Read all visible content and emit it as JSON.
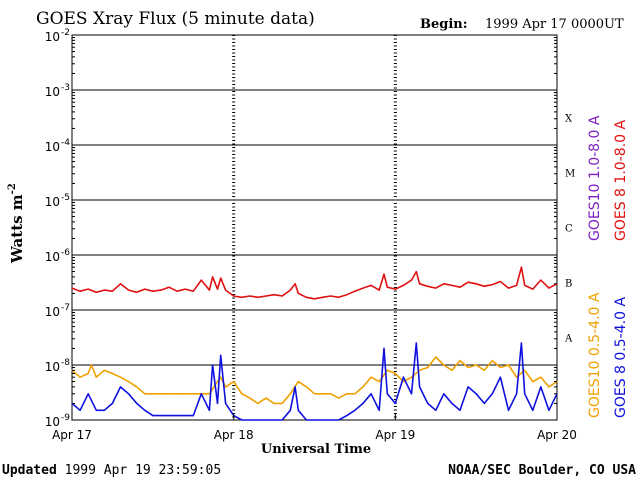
{
  "chart_data": {
    "type": "line",
    "title": "GOES Xray Flux (5 minute data)",
    "begin_label": "Begin:",
    "begin_value": "1999 Apr 17 0000UT",
    "ylabel": "Watts m",
    "ylabel_exp": "-2",
    "xlabel": "Universal Time",
    "y_scale": "log",
    "ylim": [
      1e-09,
      0.01
    ],
    "xlim": [
      0,
      3
    ],
    "grid": "horizontal at each decade",
    "y_ticks": [
      {
        "base": "10",
        "exp": "-2",
        "value": 0.01
      },
      {
        "base": "10",
        "exp": "-3",
        "value": 0.001
      },
      {
        "base": "10",
        "exp": "-4",
        "value": 0.0001
      },
      {
        "base": "10",
        "exp": "-5",
        "value": 1e-05
      },
      {
        "base": "10",
        "exp": "-6",
        "value": 1e-06
      },
      {
        "base": "10",
        "exp": "-7",
        "value": 1e-07
      },
      {
        "base": "10",
        "exp": "-8",
        "value": 1e-08
      },
      {
        "base": "10",
        "exp": "-9",
        "value": 1e-09
      }
    ],
    "x_ticks": [
      {
        "label": "Apr 17",
        "value": 0
      },
      {
        "label": "Apr 18",
        "value": 1
      },
      {
        "label": "Apr 19",
        "value": 2
      },
      {
        "label": "Apr 20",
        "value": 3
      }
    ],
    "flare_classes": [
      {
        "label": "X",
        "log_center": -3.5
      },
      {
        "label": "M",
        "log_center": -4.5
      },
      {
        "label": "C",
        "log_center": -5.5
      },
      {
        "label": "B",
        "log_center": -6.5
      },
      {
        "label": "A",
        "log_center": -7.5
      }
    ],
    "series": [
      {
        "name": "GOES10 1.0-8.0 A",
        "color": "#8020c0",
        "x": [],
        "y": []
      },
      {
        "name": "GOES 8 1.0-8.0 A",
        "color": "#e01010",
        "x": [
          0.0,
          0.05,
          0.1,
          0.15,
          0.2,
          0.25,
          0.3,
          0.35,
          0.4,
          0.45,
          0.5,
          0.55,
          0.6,
          0.65,
          0.7,
          0.75,
          0.8,
          0.85,
          0.87,
          0.9,
          0.92,
          0.95,
          1.0,
          1.05,
          1.1,
          1.15,
          1.2,
          1.25,
          1.3,
          1.35,
          1.38,
          1.4,
          1.45,
          1.5,
          1.55,
          1.6,
          1.65,
          1.7,
          1.75,
          1.8,
          1.85,
          1.9,
          1.93,
          1.95,
          2.0,
          2.05,
          2.1,
          2.13,
          2.15,
          2.2,
          2.25,
          2.3,
          2.35,
          2.4,
          2.45,
          2.5,
          2.55,
          2.6,
          2.65,
          2.7,
          2.75,
          2.78,
          2.8,
          2.85,
          2.9,
          2.95,
          3.0
        ],
        "y": [
          2.5e-07,
          2.2e-07,
          2.4e-07,
          2.1e-07,
          2.3e-07,
          2.2e-07,
          3e-07,
          2.3e-07,
          2.1e-07,
          2.4e-07,
          2.2e-07,
          2.3e-07,
          2.6e-07,
          2.2e-07,
          2.4e-07,
          2.2e-07,
          3.5e-07,
          2.3e-07,
          4e-07,
          2.4e-07,
          3.8e-07,
          2.3e-07,
          1.8e-07,
          1.7e-07,
          1.8e-07,
          1.7e-07,
          1.8e-07,
          1.9e-07,
          1.8e-07,
          2.3e-07,
          3e-07,
          2e-07,
          1.7e-07,
          1.6e-07,
          1.7e-07,
          1.8e-07,
          1.7e-07,
          1.9e-07,
          2.2e-07,
          2.5e-07,
          2.8e-07,
          2.3e-07,
          4.5e-07,
          2.6e-07,
          2.4e-07,
          2.8e-07,
          3.5e-07,
          5e-07,
          3e-07,
          2.7e-07,
          2.5e-07,
          3e-07,
          2.8e-07,
          2.6e-07,
          3.2e-07,
          3e-07,
          2.7e-07,
          2.9e-07,
          3.3e-07,
          2.5e-07,
          2.8e-07,
          6e-07,
          2.8e-07,
          2.4e-07,
          3.5e-07,
          2.5e-07,
          3e-07
        ]
      },
      {
        "name": "GOES10 0.5-4.0 A",
        "color": "#f0a000",
        "x": [
          0.0,
          0.05,
          0.1,
          0.12,
          0.15,
          0.2,
          0.25,
          0.3,
          0.35,
          0.4,
          0.45,
          0.5,
          0.55,
          0.6,
          0.65,
          0.7,
          0.75,
          0.8,
          0.85,
          0.9,
          0.92,
          0.95,
          1.0,
          1.05,
          1.1,
          1.15,
          1.2,
          1.25,
          1.3,
          1.35,
          1.4,
          1.45,
          1.5,
          1.55,
          1.6,
          1.65,
          1.7,
          1.75,
          1.8,
          1.85,
          1.9,
          1.95,
          2.0,
          2.05,
          2.1,
          2.15,
          2.2,
          2.25,
          2.3,
          2.35,
          2.4,
          2.45,
          2.5,
          2.55,
          2.6,
          2.65,
          2.7,
          2.75,
          2.8,
          2.85,
          2.9,
          2.95,
          3.0
        ],
        "y": [
          8e-09,
          6e-09,
          7e-09,
          1e-08,
          6e-09,
          8e-09,
          7e-09,
          6e-09,
          5e-09,
          4e-09,
          3e-09,
          3e-09,
          3e-09,
          3e-09,
          3e-09,
          3e-09,
          3e-09,
          3e-09,
          3e-09,
          5e-09,
          6e-09,
          4e-09,
          5e-09,
          3e-09,
          2.5e-09,
          2e-09,
          2.5e-09,
          2e-09,
          2e-09,
          3e-09,
          5e-09,
          4e-09,
          3e-09,
          3e-09,
          3e-09,
          2.5e-09,
          3e-09,
          3e-09,
          4e-09,
          6e-09,
          5e-09,
          8e-09,
          7e-09,
          5e-09,
          6e-09,
          8e-09,
          9e-09,
          1.4e-08,
          1e-08,
          8e-09,
          1.2e-08,
          9e-09,
          1e-08,
          8e-09,
          1.2e-08,
          9e-09,
          1e-08,
          6e-09,
          8e-09,
          5e-09,
          6e-09,
          4e-09,
          5e-09
        ]
      },
      {
        "name": "GOES 8 0.5-4.0 A",
        "color": "#1010e0",
        "x": [
          0.0,
          0.05,
          0.1,
          0.15,
          0.2,
          0.25,
          0.3,
          0.35,
          0.4,
          0.45,
          0.5,
          0.55,
          0.6,
          0.65,
          0.7,
          0.75,
          0.8,
          0.85,
          0.87,
          0.9,
          0.92,
          0.95,
          1.0,
          1.05,
          1.1,
          1.15,
          1.2,
          1.25,
          1.3,
          1.35,
          1.38,
          1.4,
          1.45,
          1.5,
          1.55,
          1.6,
          1.65,
          1.7,
          1.75,
          1.8,
          1.85,
          1.9,
          1.93,
          1.95,
          2.0,
          2.05,
          2.1,
          2.13,
          2.15,
          2.2,
          2.25,
          2.3,
          2.35,
          2.4,
          2.45,
          2.5,
          2.55,
          2.6,
          2.65,
          2.7,
          2.75,
          2.78,
          2.8,
          2.85,
          2.9,
          2.95,
          3.0
        ],
        "y": [
          2e-09,
          1.5e-09,
          3e-09,
          1.5e-09,
          1.5e-09,
          2e-09,
          4e-09,
          3e-09,
          2e-09,
          1.5e-09,
          1.2e-09,
          1.2e-09,
          1.2e-09,
          1.2e-09,
          1.2e-09,
          1.2e-09,
          3e-09,
          1.5e-09,
          1e-08,
          2e-09,
          1.5e-08,
          2e-09,
          1.2e-09,
          1e-09,
          1e-09,
          1e-09,
          1e-09,
          1e-09,
          1e-09,
          1.5e-09,
          4e-09,
          1.5e-09,
          1e-09,
          1e-09,
          1e-09,
          1e-09,
          1e-09,
          1.2e-09,
          1.5e-09,
          2e-09,
          3e-09,
          1.5e-09,
          2e-08,
          3e-09,
          2e-09,
          6e-09,
          3e-09,
          2.5e-08,
          4e-09,
          2e-09,
          1.5e-09,
          3e-09,
          2e-09,
          1.5e-09,
          4e-09,
          3e-09,
          2e-09,
          3e-09,
          6e-09,
          1.5e-09,
          3e-09,
          2.5e-08,
          3e-09,
          1.5e-09,
          4e-09,
          1.5e-09,
          3e-09
        ]
      }
    ]
  },
  "footer": {
    "updated_label": "Updated",
    "updated_value": "1999 Apr 19 23:59:05",
    "credit": "NOAA/SEC Boulder, CO USA"
  }
}
